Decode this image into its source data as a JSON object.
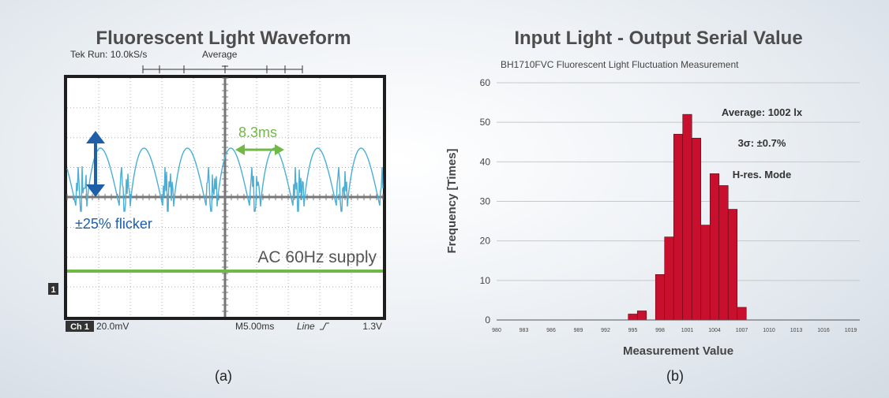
{
  "left_panel": {
    "title": "Fluorescent Light Waveform",
    "scope_header": "Tek Run: 10.0kS/s",
    "scope_mode": "Average",
    "flicker_label": "±25% flicker",
    "period_label": "8.3ms",
    "supply_label": "AC 60Hz supply",
    "channel_marker": "1",
    "footer_channel": "Ch 1",
    "footer_scale": "20.0mV",
    "footer_time": "M5.00ms",
    "footer_trigger": "Line",
    "footer_level": "1.3V",
    "caption": "(a)",
    "colors": {
      "waveform": "#4aaed6",
      "flicker_arrow": "#1f5fa8",
      "period": "#72b844",
      "supply": "#72b844"
    }
  },
  "right_panel": {
    "title": "Input Light  - Output Serial Value",
    "caption": "(b)",
    "annotations": [
      "Average: 1002 lx",
      "3σ: ±0.7%",
      "H-res. Mode"
    ]
  },
  "chart_data": {
    "type": "bar",
    "subtitle": "BH1710FVC Fluorescent Light Fluctuation Measurement",
    "xlabel": "Measurement Value",
    "ylabel": "Frequency [Times]",
    "ylim": [
      0,
      60
    ],
    "yticks": [
      0,
      10,
      20,
      30,
      40,
      50,
      60
    ],
    "xlim": [
      980,
      1020
    ],
    "xticks": [
      980,
      983,
      986,
      989,
      992,
      995,
      998,
      1001,
      1004,
      1007,
      1010,
      1013,
      1016,
      1019
    ],
    "x": [
      995,
      996,
      997,
      998,
      999,
      1000,
      1001,
      1002,
      1003,
      1004,
      1005,
      1006,
      1007
    ],
    "values": [
      1.5,
      2.3,
      0,
      11.5,
      21,
      47,
      52,
      46,
      24,
      37,
      34,
      28,
      3.2
    ],
    "color": "#c8102e",
    "grid": "horizontal"
  }
}
